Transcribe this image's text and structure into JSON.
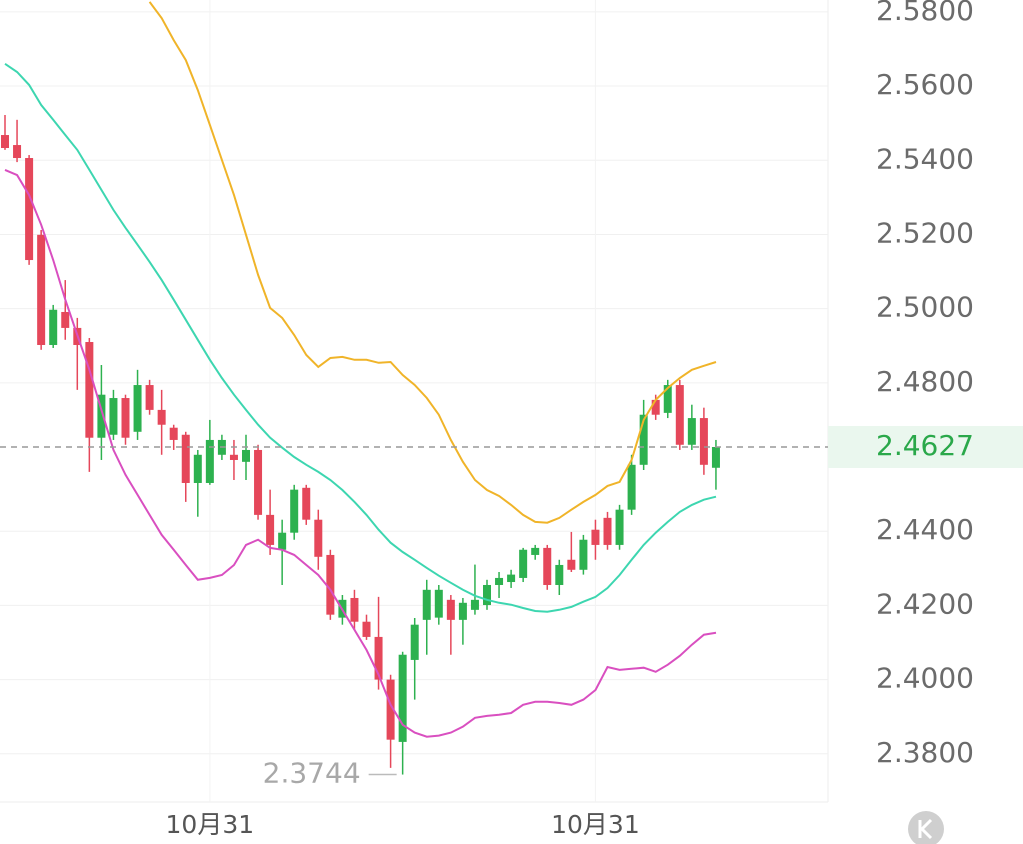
{
  "chart_data": {
    "type": "candlestick",
    "categories": [
      null,
      null,
      null,
      null,
      null,
      null,
      null,
      null,
      null,
      null,
      null,
      null,
      null,
      null,
      null,
      null,
      null,
      "10月31",
      null,
      null,
      null,
      null,
      null,
      null,
      null,
      null,
      null,
      null,
      null,
      null,
      null,
      null,
      null,
      null,
      null,
      null,
      null,
      null,
      null,
      null,
      null,
      null,
      null,
      null,
      null,
      null,
      null,
      null,
      null,
      "10月31",
      null,
      null,
      null,
      null,
      null,
      null,
      null,
      null,
      null,
      null
    ],
    "candles": {
      "up_color": "#2db14f",
      "down_color": "#e5475a",
      "open": [
        2.5468,
        2.5441,
        2.5406,
        2.5199,
        2.4902,
        2.4991,
        2.4948,
        2.491,
        2.4652,
        2.466,
        2.4759,
        2.4668,
        2.4794,
        2.4727,
        2.4679,
        2.466,
        2.453,
        2.453,
        2.4606,
        2.4606,
        2.4587,
        2.4619,
        2.4444,
        2.435,
        2.4396,
        2.4517,
        2.4431,
        2.4336,
        2.4167,
        2.422,
        2.4156,
        2.4115,
        2.4,
        2.3832,
        2.4053,
        2.4161,
        2.4167,
        2.4215,
        2.4161,
        2.4188,
        2.4201,
        2.4255,
        2.4263,
        2.4274,
        2.4336,
        2.4355,
        2.4255,
        2.4323,
        2.4296,
        2.4404,
        2.4436,
        2.4363,
        2.4458,
        2.4579,
        2.4754,
        2.4719,
        2.4794,
        2.4633,
        2.4705,
        2.4571
      ],
      "high": [
        2.5522,
        2.5509,
        2.5414,
        2.5212,
        2.501,
        2.5077,
        2.4975,
        2.4921,
        2.4848,
        2.4781,
        2.4768,
        2.4835,
        2.4808,
        2.4781,
        2.4687,
        2.4668,
        2.4619,
        2.47,
        2.466,
        2.4646,
        2.466,
        2.4633,
        2.4512,
        2.4431,
        2.4525,
        2.4525,
        2.4458,
        2.435,
        2.4228,
        2.4242,
        2.4175,
        2.4223,
        2.4013,
        2.4075,
        2.4166,
        2.4269,
        2.4255,
        2.4228,
        2.422,
        2.431,
        2.4269,
        2.429,
        2.4296,
        2.4355,
        2.4363,
        2.4363,
        2.4323,
        2.4398,
        2.439,
        2.4431,
        2.4452,
        2.4471,
        2.4606,
        2.4754,
        2.4768,
        2.4808,
        2.4808,
        2.4741,
        2.4733,
        2.4646
      ],
      "low": [
        2.5428,
        2.5395,
        2.5118,
        2.4889,
        2.4894,
        2.4916,
        2.4781,
        2.456,
        2.4592,
        2.4646,
        2.4633,
        2.4646,
        2.4714,
        2.4606,
        2.4619,
        2.4479,
        2.4439,
        2.4525,
        2.4592,
        2.4538,
        2.4538,
        2.4431,
        2.4336,
        2.4255,
        2.4377,
        2.4417,
        2.4296,
        2.4161,
        2.4148,
        2.4134,
        2.4107,
        2.3973,
        2.3762,
        2.3744,
        2.3946,
        2.4067,
        2.4148,
        2.4067,
        2.4094,
        2.4175,
        2.4188,
        2.422,
        2.4247,
        2.4263,
        2.4323,
        2.4242,
        2.4228,
        2.429,
        2.4283,
        2.4323,
        2.435,
        2.435,
        2.4444,
        2.4565,
        2.47,
        2.4705,
        2.4619,
        2.4619,
        2.4552,
        2.4512
      ],
      "close": [
        2.5433,
        2.5406,
        2.5131,
        2.4902,
        2.4997,
        2.4948,
        2.4902,
        2.4652,
        2.4768,
        2.4759,
        2.4652,
        2.4794,
        2.4727,
        2.4687,
        2.4646,
        2.453,
        2.4606,
        2.4646,
        2.4646,
        2.4592,
        2.4619,
        2.4444,
        2.4363,
        2.4396,
        2.4512,
        2.4431,
        2.4331,
        2.4175,
        2.4215,
        2.4156,
        2.4115,
        2.4,
        2.3838,
        2.4067,
        2.4148,
        2.4242,
        2.4242,
        2.4161,
        2.4207,
        2.4215,
        2.4255,
        2.4274,
        2.4283,
        2.435,
        2.4355,
        2.4255,
        2.4309,
        2.4296,
        2.4377,
        2.4363,
        2.4363,
        2.4458,
        2.4579,
        2.4714,
        2.4714,
        2.4794,
        2.4633,
        2.4705,
        2.4579,
        2.4627
      ]
    },
    "lines": [
      {
        "color": "#f0b429",
        "values": [
          null,
          null,
          null,
          null,
          null,
          null,
          null,
          null,
          null,
          null,
          null,
          null,
          2.5827,
          2.5783,
          2.5724,
          2.567,
          2.5589,
          2.5495,
          2.5401,
          2.5306,
          2.5199,
          2.5091,
          2.5002,
          2.4975,
          2.4929,
          2.4875,
          2.4843,
          2.4867,
          2.487,
          2.4862,
          2.4862,
          2.4854,
          2.4856,
          2.4821,
          2.4794,
          2.4759,
          2.4714,
          2.4646,
          2.4587,
          2.4538,
          2.4511,
          2.4495,
          2.4471,
          2.4444,
          2.4425,
          2.4423,
          2.4436,
          2.4458,
          2.4479,
          2.4498,
          2.4522,
          2.4533,
          2.4592,
          2.47,
          2.4754,
          2.4786,
          2.4813,
          2.4835,
          2.4846,
          2.4856
        ]
      },
      {
        "color": "#3dd6b0",
        "values": [
          2.566,
          2.5638,
          2.5603,
          2.5549,
          2.5509,
          2.5468,
          2.5428,
          2.5374,
          2.532,
          2.5266,
          2.5218,
          2.5172,
          2.5126,
          2.5077,
          2.5024,
          2.497,
          2.4916,
          2.4862,
          2.4813,
          2.4768,
          2.4727,
          2.4687,
          2.4652,
          2.4625,
          2.46,
          2.4579,
          2.456,
          2.4538,
          2.4511,
          2.4479,
          2.4444,
          2.4404,
          2.4369,
          2.4344,
          2.4323,
          2.4301,
          2.428,
          2.4261,
          2.4242,
          2.4226,
          2.4215,
          2.4207,
          2.4202,
          2.4193,
          2.4185,
          2.4183,
          2.4188,
          2.4196,
          2.421,
          2.4223,
          2.4247,
          2.4282,
          2.4323,
          2.4363,
          2.4396,
          2.4425,
          2.4452,
          2.4471,
          2.4485,
          2.4493
        ]
      },
      {
        "color": "#d94fc0",
        "values": [
          2.5374,
          2.536,
          2.5306,
          2.5226,
          2.5131,
          2.5024,
          2.4929,
          2.4835,
          2.4727,
          2.4619,
          2.4552,
          2.4498,
          2.4444,
          2.439,
          2.435,
          2.4309,
          2.4269,
          2.4274,
          2.4282,
          2.4309,
          2.4363,
          2.4377,
          2.4355,
          2.435,
          2.4336,
          2.4309,
          2.4282,
          2.4242,
          2.4188,
          2.4134,
          2.408,
          2.4013,
          2.3932,
          2.3878,
          2.3857,
          2.3846,
          2.3849,
          2.3857,
          2.3873,
          2.3897,
          2.3902,
          2.3905,
          2.391,
          2.3932,
          2.394,
          2.394,
          2.3937,
          2.3932,
          2.3946,
          2.3972,
          2.4034,
          2.4026,
          2.4029,
          2.4032,
          2.4021,
          2.404,
          2.4064,
          2.4094,
          2.4121,
          2.4126
        ]
      }
    ],
    "ylim": [
      2.367,
      2.5832
    ],
    "yticks": [
      {
        "value": 2.38,
        "label": "2.3800"
      },
      {
        "value": 2.4,
        "label": "2.4000"
      },
      {
        "value": 2.42,
        "label": "2.4200"
      },
      {
        "value": 2.44,
        "label": "2.4400"
      },
      {
        "value": 2.48,
        "label": "2.4800"
      },
      {
        "value": 2.5,
        "label": "2.5000"
      },
      {
        "value": 2.52,
        "label": "2.5200"
      },
      {
        "value": 2.54,
        "label": "2.5400"
      },
      {
        "value": 2.56,
        "label": "2.5600"
      },
      {
        "value": 2.58,
        "label": "2.5800"
      }
    ],
    "grid": true,
    "last_price": 2.4627,
    "last_price_color": "#2aa84a",
    "min_price": 2.3744,
    "min_index": 33
  }
}
